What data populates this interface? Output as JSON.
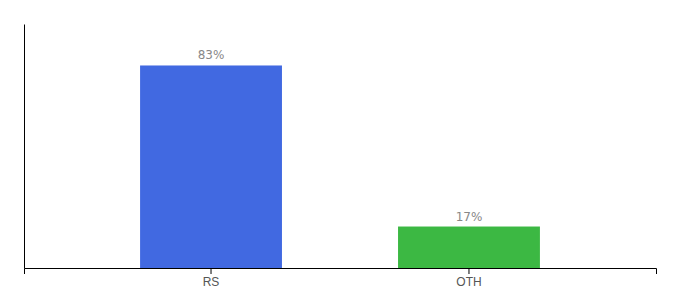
{
  "chart_data": {
    "type": "bar",
    "categories": [
      "RS",
      "OTH"
    ],
    "values": [
      83,
      17
    ],
    "colors": [
      "#4169e1",
      "#3cb843"
    ],
    "data_labels": true,
    "value_labels": [
      "83%",
      "17%"
    ],
    "ylim": [
      0,
      100
    ],
    "tick_labels": "x"
  }
}
